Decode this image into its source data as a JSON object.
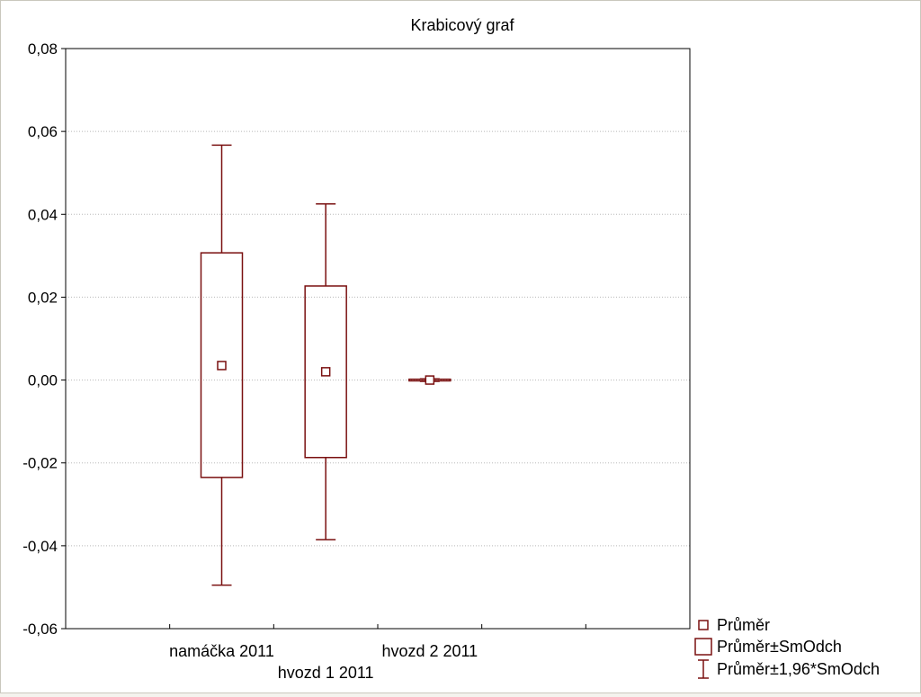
{
  "colors": {
    "series": "#7a1010",
    "grid": "#b8b8b8",
    "plot_border": "#000000",
    "background": "#ffffff"
  },
  "chart_data": {
    "type": "box",
    "title": "Krabicový graf",
    "xlabel": "",
    "ylabel": "",
    "categories": [
      "namáčka 2011",
      "hvozd 1 2011",
      "hvozd 2 2011"
    ],
    "series": [
      {
        "name": "Průměr",
        "values": [
          0.0035,
          0.002,
          0.0
        ]
      },
      {
        "name": "Průměr±SmOdch",
        "low": [
          -0.0235,
          -0.0187,
          -0.0002
        ],
        "high": [
          0.0307,
          0.0227,
          0.0002
        ]
      },
      {
        "name": "Průměr±1,96*SmOdch",
        "low": [
          -0.0495,
          -0.0385,
          -0.0003
        ],
        "high": [
          0.0567,
          0.0425,
          0.0003
        ]
      }
    ],
    "ylim": [
      -0.06,
      0.08
    ],
    "yticks": [
      "-0,06",
      "-0,04",
      "-0,02",
      "0,00",
      "0,02",
      "0,04",
      "0,06",
      "0,08"
    ],
    "grid": true,
    "legend_position": "bottom-right",
    "legend": [
      "Průměr",
      "Průměr±SmOdch",
      "Průměr±1,96*SmOdch"
    ]
  }
}
